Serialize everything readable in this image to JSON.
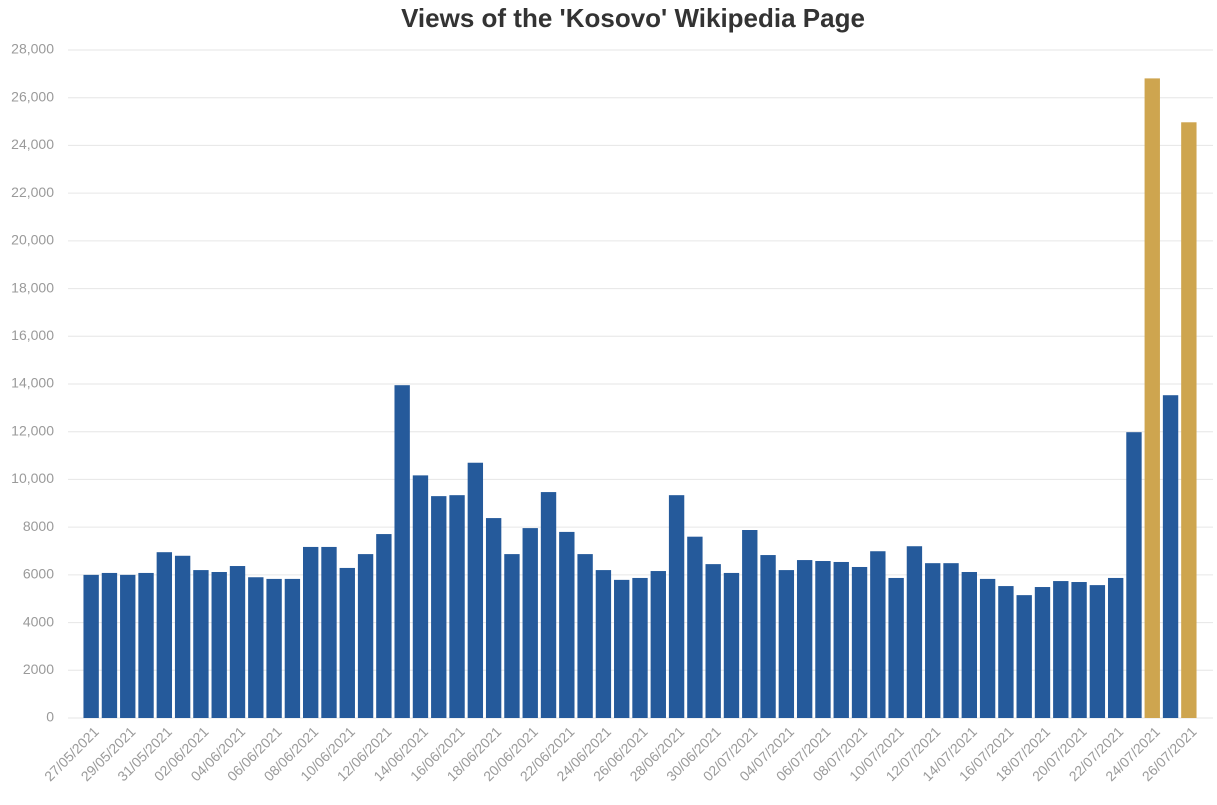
{
  "chart_data": {
    "type": "bar",
    "title": "Views of the 'Kosovo' Wikipedia Page",
    "categories": [
      "27/05/2021",
      null,
      "29/05/2021",
      null,
      "31/05/2021",
      null,
      "02/06/2021",
      null,
      "04/06/2021",
      null,
      "06/06/2021",
      null,
      "08/06/2021",
      null,
      "10/06/2021",
      null,
      "12/06/2021",
      null,
      "14/06/2021",
      null,
      "16/06/2021",
      null,
      "18/06/2021",
      null,
      "20/06/2021",
      null,
      "22/06/2021",
      null,
      "24/06/2021",
      null,
      "26/06/2021",
      null,
      "28/06/2021",
      null,
      "30/06/2021",
      null,
      "02/07/2021",
      null,
      "04/07/2021",
      null,
      "06/07/2021",
      null,
      "08/07/2021",
      null,
      "10/07/2021",
      null,
      "12/07/2021",
      null,
      "14/07/2021",
      null,
      "16/07/2021",
      null,
      "18/07/2021",
      null,
      "20/07/2021",
      null,
      "22/07/2021",
      null,
      "24/07/2021",
      null,
      "26/07/2021"
    ],
    "values": [
      6000,
      6080,
      6000,
      6080,
      6950,
      6800,
      6200,
      6120,
      6370,
      5900,
      5830,
      5830,
      7170,
      7170,
      6290,
      6870,
      7710,
      13950,
      10170,
      9300,
      9340,
      10700,
      8380,
      6870,
      7960,
      9470,
      7800,
      6870,
      6200,
      5790,
      5870,
      6160,
      9340,
      7600,
      6450,
      6080,
      7880,
      6830,
      6200,
      6620,
      6580,
      6540,
      6330,
      6990,
      5870,
      7200,
      6490,
      6490,
      6120,
      5830,
      5530,
      5150,
      5490,
      5740,
      5700,
      5570,
      5870,
      11980,
      26810,
      13530,
      24970
    ],
    "colors": [
      "#255a9b",
      "#255a9b",
      "#255a9b",
      "#255a9b",
      "#255a9b",
      "#255a9b",
      "#255a9b",
      "#255a9b",
      "#255a9b",
      "#255a9b",
      "#255a9b",
      "#255a9b",
      "#255a9b",
      "#255a9b",
      "#255a9b",
      "#255a9b",
      "#255a9b",
      "#255a9b",
      "#255a9b",
      "#255a9b",
      "#255a9b",
      "#255a9b",
      "#255a9b",
      "#255a9b",
      "#255a9b",
      "#255a9b",
      "#255a9b",
      "#255a9b",
      "#255a9b",
      "#255a9b",
      "#255a9b",
      "#255a9b",
      "#255a9b",
      "#255a9b",
      "#255a9b",
      "#255a9b",
      "#255a9b",
      "#255a9b",
      "#255a9b",
      "#255a9b",
      "#255a9b",
      "#255a9b",
      "#255a9b",
      "#255a9b",
      "#255a9b",
      "#255a9b",
      "#255a9b",
      "#255a9b",
      "#255a9b",
      "#255a9b",
      "#255a9b",
      "#255a9b",
      "#255a9b",
      "#255a9b",
      "#255a9b",
      "#255a9b",
      "#255a9b",
      "#255a9b",
      "#cea54f",
      "#255a9b",
      "#cea54f"
    ],
    "ylim": [
      0,
      28000
    ],
    "yticks": [
      0,
      2000,
      4000,
      6000,
      8000,
      {
        "value": 10000,
        "label": "10,000"
      },
      {
        "value": 12000,
        "label": "12,000"
      },
      {
        "value": 14000,
        "label": "14,000"
      },
      {
        "value": 16000,
        "label": "16,000"
      },
      {
        "value": 18000,
        "label": "18,000"
      },
      {
        "value": 20000,
        "label": "20,000"
      },
      {
        "value": 22000,
        "label": "22,000"
      },
      {
        "value": 24000,
        "label": "24,000"
      },
      {
        "value": 26000,
        "label": "26,000"
      },
      {
        "value": 28000,
        "label": "28,000"
      }
    ],
    "grid": true
  }
}
